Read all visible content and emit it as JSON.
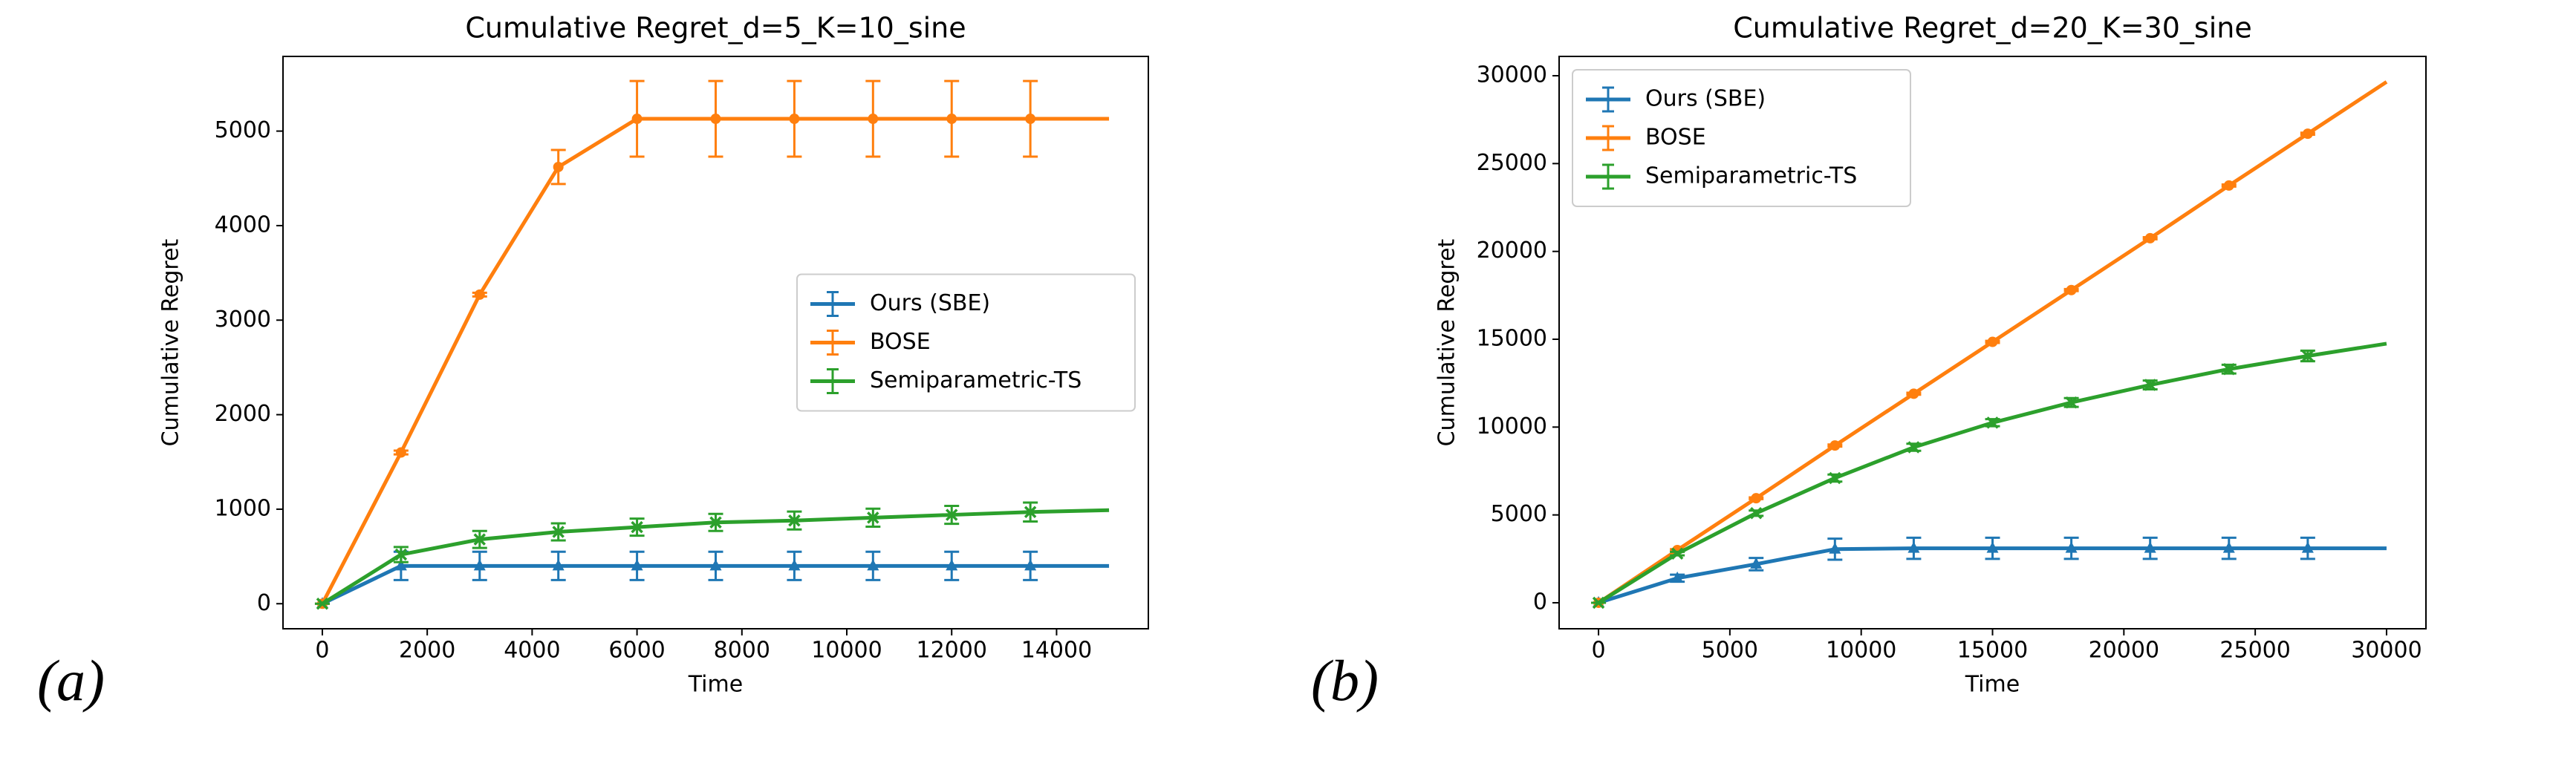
{
  "chart_data": [
    {
      "type": "line",
      "title": "Cumulative Regret_d=5_K=10_sine",
      "panel_label": "(a)",
      "xlabel": "Time",
      "ylabel": "Cumulative Regret",
      "x": [
        0,
        1500,
        3000,
        4500,
        6000,
        7500,
        9000,
        10500,
        12000,
        13500,
        15000
      ],
      "xlim": [
        -750,
        15750
      ],
      "xticks": [
        0,
        2000,
        4000,
        6000,
        8000,
        10000,
        12000,
        14000
      ],
      "ylim": [
        -265,
        5790
      ],
      "yticks": [
        0,
        1000,
        2000,
        3000,
        4000,
        5000
      ],
      "legend": "center right",
      "series": [
        {
          "name": "Ours (SBE)",
          "color": "#1f77b4",
          "marker": "triangle",
          "values": [
            0,
            400,
            400,
            400,
            400,
            400,
            400,
            400,
            400,
            400,
            400
          ],
          "errors": [
            0,
            150,
            150,
            150,
            150,
            150,
            150,
            150,
            150,
            150,
            null
          ]
        },
        {
          "name": "BOSE",
          "color": "#ff7f0e",
          "marker": "circle",
          "values": [
            0,
            1600,
            3270,
            4620,
            5130,
            5130,
            5130,
            5130,
            5130,
            5130,
            5130
          ],
          "errors": [
            0,
            20,
            20,
            180,
            400,
            400,
            400,
            400,
            400,
            400,
            null
          ]
        },
        {
          "name": "Semiparametric-TS",
          "color": "#2ca02c",
          "marker": "x",
          "values": [
            0,
            520,
            680,
            760,
            810,
            860,
            880,
            910,
            940,
            970,
            990
          ],
          "errors": [
            0,
            80,
            90,
            90,
            90,
            90,
            95,
            95,
            95,
            100,
            null
          ]
        }
      ]
    },
    {
      "type": "line",
      "title": "Cumulative Regret_d=20_K=30_sine",
      "panel_label": "(b)",
      "xlabel": "Time",
      "ylabel": "Cumulative Regret",
      "x": [
        0,
        3000,
        6000,
        9000,
        12000,
        15000,
        18000,
        21000,
        24000,
        27000,
        30000
      ],
      "xlim": [
        -1500,
        31500
      ],
      "xticks": [
        0,
        5000,
        10000,
        15000,
        20000,
        25000,
        30000
      ],
      "ylim": [
        -1480,
        31100
      ],
      "yticks": [
        0,
        5000,
        10000,
        15000,
        20000,
        25000,
        30000
      ],
      "legend": "upper left",
      "series": [
        {
          "name": "Ours (SBE)",
          "color": "#1f77b4",
          "marker": "triangle",
          "values": [
            0,
            1400,
            2200,
            3050,
            3100,
            3100,
            3100,
            3100,
            3100,
            3100,
            3100
          ],
          "errors": [
            0,
            200,
            350,
            600,
            600,
            600,
            600,
            600,
            600,
            600,
            null
          ]
        },
        {
          "name": "BOSE",
          "color": "#ff7f0e",
          "marker": "circle",
          "values": [
            0,
            3000,
            5950,
            8950,
            11900,
            14850,
            17800,
            20750,
            23750,
            26700,
            29650
          ],
          "errors": [
            0,
            50,
            50,
            60,
            60,
            60,
            60,
            60,
            60,
            60,
            null
          ]
        },
        {
          "name": "Semiparametric-TS",
          "color": "#2ca02c",
          "marker": "x",
          "values": [
            0,
            2800,
            5100,
            7100,
            8850,
            10250,
            11400,
            12400,
            13300,
            14050,
            14750
          ],
          "errors": [
            0,
            100,
            150,
            200,
            200,
            200,
            250,
            250,
            250,
            300,
            null
          ]
        }
      ]
    }
  ]
}
